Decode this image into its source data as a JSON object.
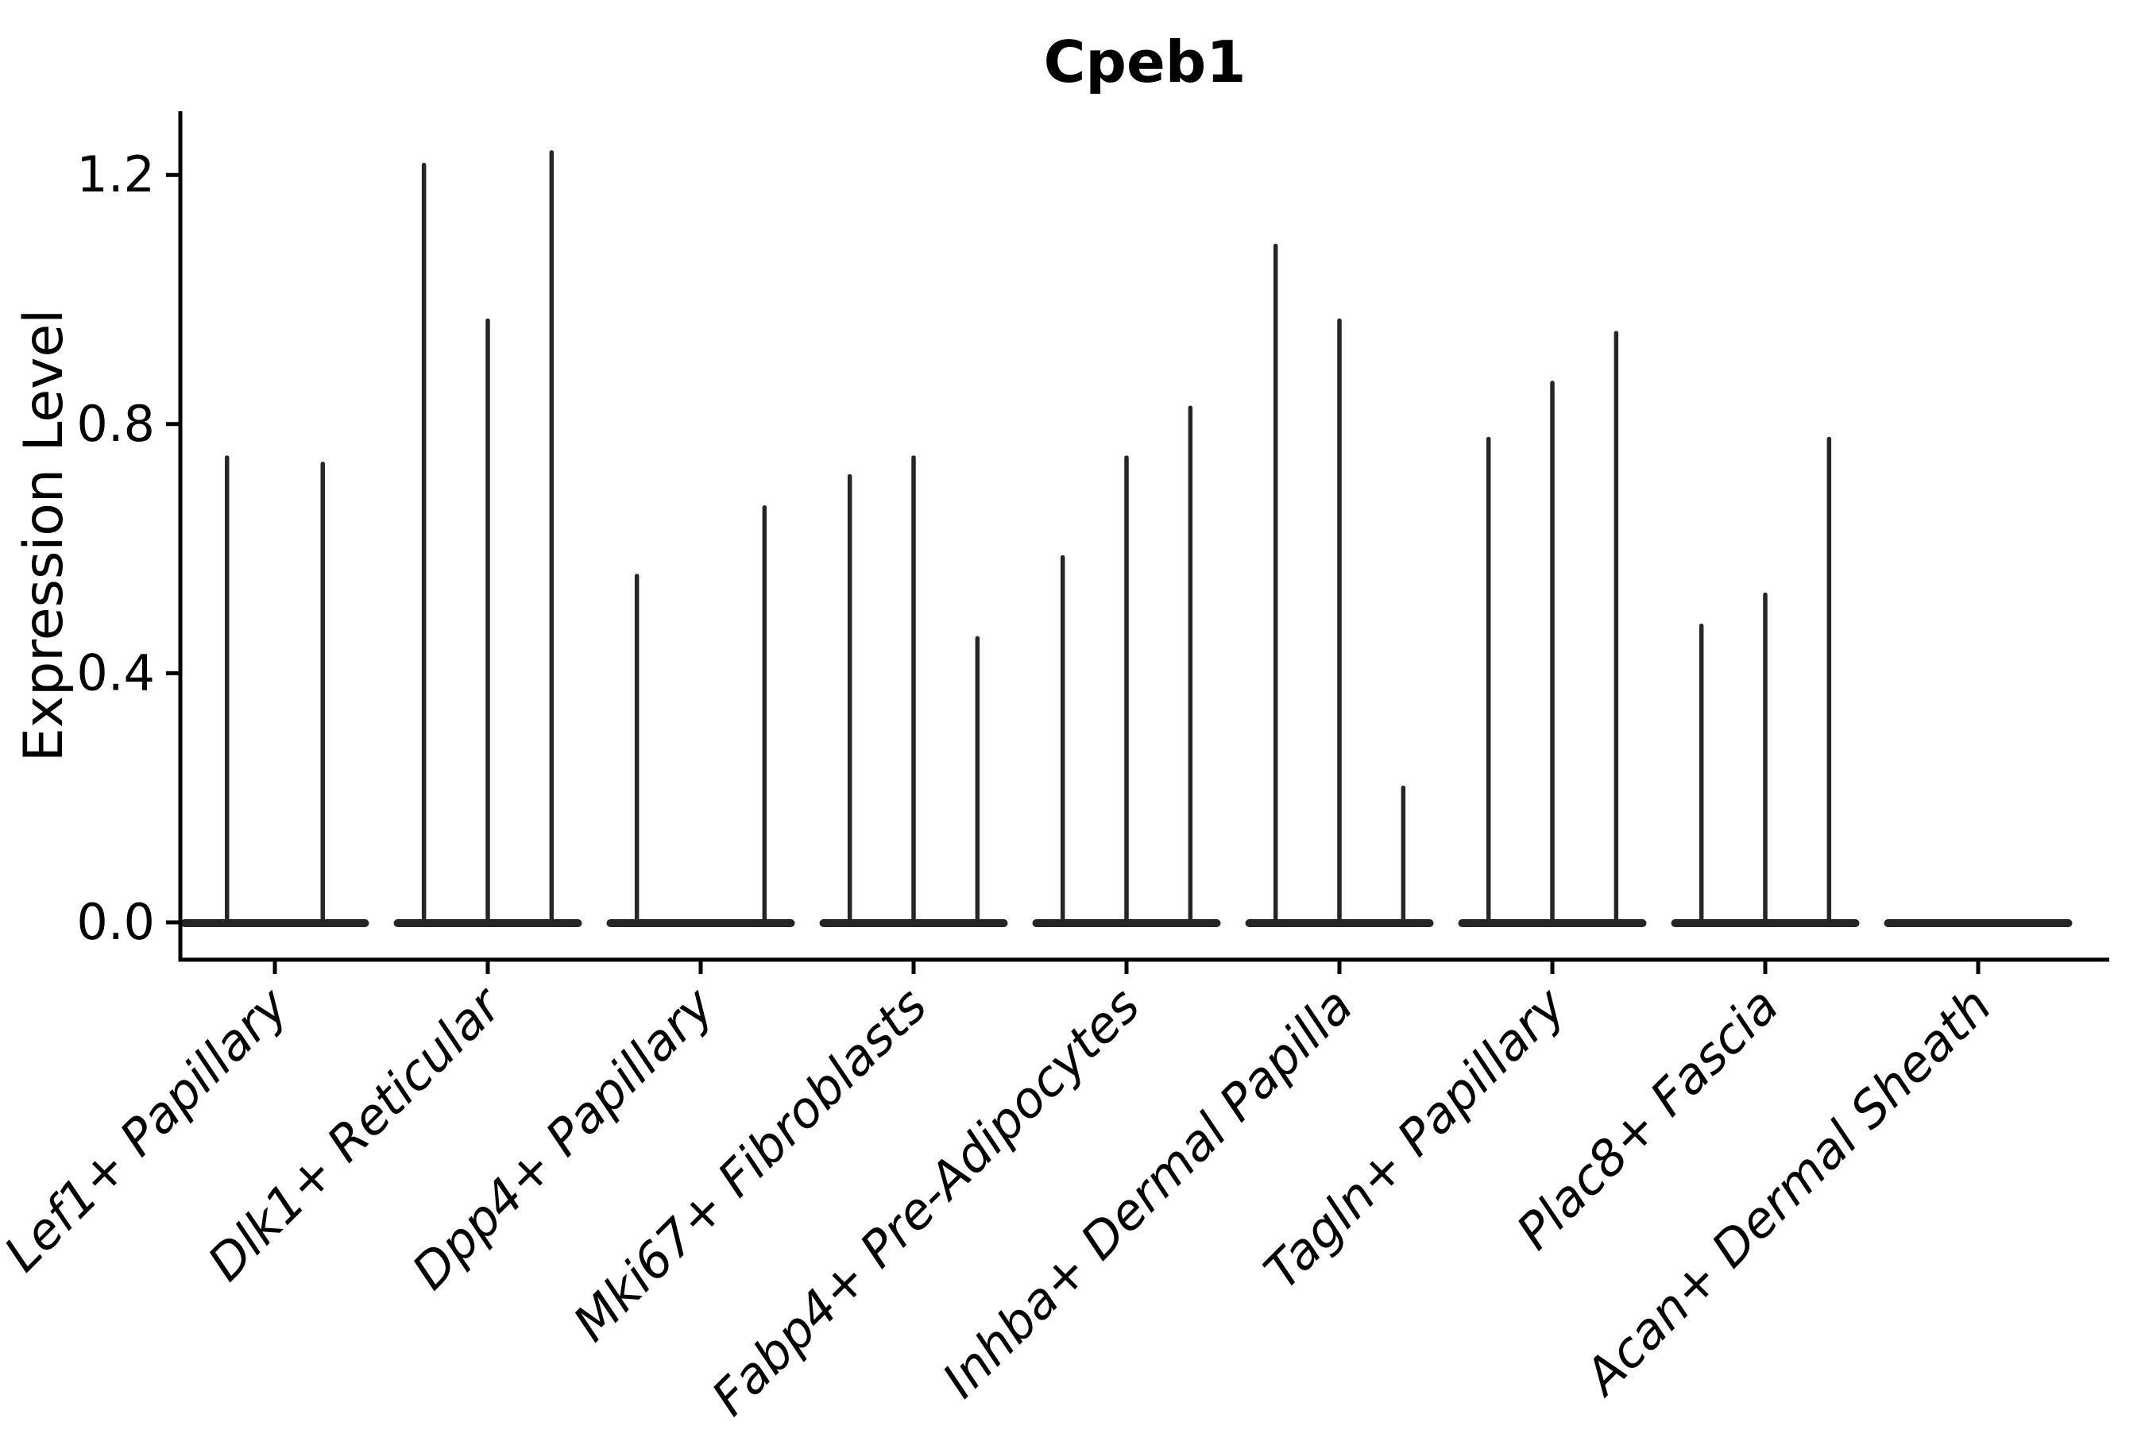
{
  "chart_data": {
    "type": "violin",
    "title": "Cpeb1",
    "ylabel": "Expression Level",
    "xlabel": "",
    "legend": "none",
    "grid": false,
    "background": "#ffffff",
    "violin_color": "#262626",
    "axis_color": "#000000",
    "ylim": [
      -0.06,
      1.3
    ],
    "ytick_values": [
      0.0,
      0.4,
      0.8,
      1.2
    ],
    "ytick_labels": [
      "0.0",
      "0.4",
      "0.8",
      "1.2"
    ],
    "categories": [
      "Lef1+ Papillary",
      "Dlk1+ Reticular",
      "Dpp4+ Papillary",
      "Mki67+ Fibroblasts",
      "Fabp4+ Pre-Adipocytes",
      "Inhba+ Dermal Papilla",
      "Tagln+ Papillary",
      "Plac8+ Fascia",
      "Acan+ Dermal Sheath"
    ],
    "groups": [
      {
        "category": "Lef1+ Papillary",
        "violin_max_expression": [
          0.75,
          0.74
        ]
      },
      {
        "category": "Dlk1+ Reticular",
        "violin_max_expression": [
          1.22,
          0.97,
          1.24
        ]
      },
      {
        "category": "Dpp4+ Papillary",
        "violin_max_expression": [
          0.56,
          0,
          0.67
        ]
      },
      {
        "category": "Mki67+ Fibroblasts",
        "violin_max_expression": [
          0.72,
          0.75,
          0.46
        ]
      },
      {
        "category": "Fabp4+ Pre-Adipocytes",
        "violin_max_expression": [
          0.59,
          0.75,
          0.83
        ]
      },
      {
        "category": "Inhba+ Dermal Papilla",
        "violin_max_expression": [
          1.09,
          0.97,
          0.22
        ]
      },
      {
        "category": "Tagln+ Papillary",
        "violin_max_expression": [
          0.78,
          0.87,
          0.95
        ]
      },
      {
        "category": "Plac8+ Fascia",
        "violin_max_expression": [
          0.48,
          0.53,
          0.78
        ]
      },
      {
        "category": "Acan+ Dermal Sheath",
        "violin_max_expression": [
          0,
          0,
          0
        ]
      }
    ]
  }
}
